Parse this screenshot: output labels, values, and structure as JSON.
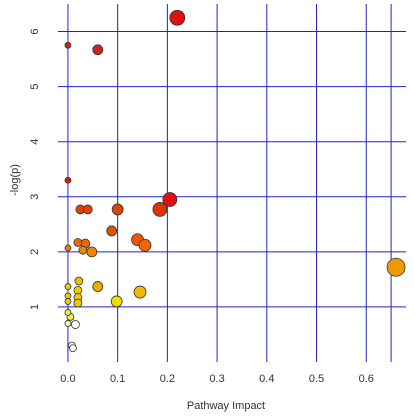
{
  "chart_data": {
    "type": "scatter",
    "title": "",
    "xlabel": "Pathway Impact",
    "ylabel": "-log(p)",
    "xlim": [
      -0.02,
      0.68
    ],
    "ylim": [
      0,
      6.5
    ],
    "x_ticks": [
      "0.0",
      "0.1",
      "0.2",
      "0.3",
      "0.4",
      "0.5",
      "0.6"
    ],
    "y_ticks": [
      "1",
      "2",
      "3",
      "4",
      "5",
      "6"
    ],
    "grid": true,
    "grid_color": "#2222cc",
    "point_color_scale": "low -log(p) = white/yellow, high -log(p) = red",
    "points": [
      {
        "x": 0.22,
        "y": 6.25,
        "size": 7.5,
        "color": "#dd1111"
      },
      {
        "x": 0.0,
        "y": 5.75,
        "size": 3,
        "color": "#cc2222"
      },
      {
        "x": 0.06,
        "y": 5.67,
        "size": 5,
        "color": "#cc2222"
      },
      {
        "x": 0.0,
        "y": 3.3,
        "size": 3,
        "color": "#cc2200"
      },
      {
        "x": 0.205,
        "y": 2.95,
        "size": 7,
        "color": "#dd1111"
      },
      {
        "x": 0.185,
        "y": 2.77,
        "size": 7,
        "color": "#dd3300"
      },
      {
        "x": 0.1,
        "y": 2.77,
        "size": 5.5,
        "color": "#dd4400"
      },
      {
        "x": 0.025,
        "y": 2.77,
        "size": 4.5,
        "color": "#dd4400"
      },
      {
        "x": 0.04,
        "y": 2.77,
        "size": 4.5,
        "color": "#dd4400"
      },
      {
        "x": 0.088,
        "y": 2.38,
        "size": 5,
        "color": "#dd5500"
      },
      {
        "x": 0.14,
        "y": 2.22,
        "size": 6,
        "color": "#ee5500"
      },
      {
        "x": 0.155,
        "y": 2.12,
        "size": 6,
        "color": "#ee6600"
      },
      {
        "x": 0.02,
        "y": 2.17,
        "size": 4,
        "color": "#ee6600"
      },
      {
        "x": 0.035,
        "y": 2.15,
        "size": 4.5,
        "color": "#ee6600"
      },
      {
        "x": 0.0,
        "y": 2.07,
        "size": 3,
        "color": "#ee7700"
      },
      {
        "x": 0.03,
        "y": 2.03,
        "size": 4,
        "color": "#ee8800"
      },
      {
        "x": 0.048,
        "y": 2.0,
        "size": 5,
        "color": "#ee8800"
      },
      {
        "x": 0.66,
        "y": 1.72,
        "size": 9,
        "color": "#ee9900"
      },
      {
        "x": 0.022,
        "y": 1.47,
        "size": 4,
        "color": "#eebb00"
      },
      {
        "x": 0.06,
        "y": 1.37,
        "size": 5,
        "color": "#eeaa00"
      },
      {
        "x": 0.145,
        "y": 1.27,
        "size": 6,
        "color": "#eebb00"
      },
      {
        "x": 0.0,
        "y": 1.37,
        "size": 3,
        "color": "#eecc00"
      },
      {
        "x": 0.02,
        "y": 1.3,
        "size": 4,
        "color": "#eecc00"
      },
      {
        "x": 0.0,
        "y": 1.2,
        "size": 3,
        "color": "#eecc00"
      },
      {
        "x": 0.02,
        "y": 1.17,
        "size": 4,
        "color": "#eecc00"
      },
      {
        "x": 0.0,
        "y": 1.1,
        "size": 3,
        "color": "#eecc00"
      },
      {
        "x": 0.02,
        "y": 1.07,
        "size": 4,
        "color": "#eecc00"
      },
      {
        "x": 0.098,
        "y": 1.1,
        "size": 5.5,
        "color": "#eedd00"
      },
      {
        "x": 0.0,
        "y": 0.9,
        "size": 3,
        "color": "#eeee44"
      },
      {
        "x": 0.005,
        "y": 0.82,
        "size": 3.5,
        "color": "#eeee66"
      },
      {
        "x": 0.0,
        "y": 0.7,
        "size": 3,
        "color": "#ffffaa"
      },
      {
        "x": 0.015,
        "y": 0.68,
        "size": 4,
        "color": "#ffffff"
      },
      {
        "x": 0.008,
        "y": 0.3,
        "size": 3.5,
        "color": "#ffffff"
      },
      {
        "x": 0.01,
        "y": 0.25,
        "size": 3.5,
        "color": "#ffffff"
      }
    ]
  }
}
